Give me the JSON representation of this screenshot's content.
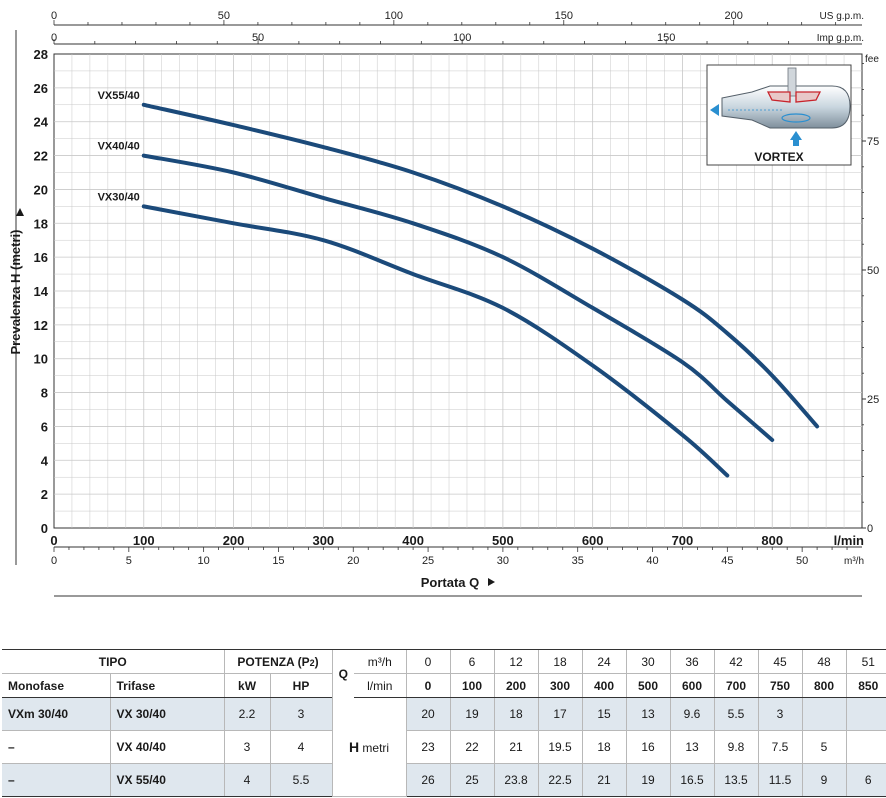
{
  "chart_data": {
    "type": "line",
    "ylabel": "Prevalenza H (metri)",
    "xlabel": "Portata Q",
    "xunit": "l/min",
    "xlim": [
      0,
      900
    ],
    "ylim": [
      0,
      28
    ],
    "grid": true,
    "x_ticks": [
      "0",
      "100",
      "200",
      "300",
      "400",
      "500",
      "600",
      "700",
      "800"
    ],
    "y_ticks": [
      "0",
      "2",
      "4",
      "6",
      "8",
      "10",
      "12",
      "14",
      "16",
      "18",
      "20",
      "22",
      "24",
      "26",
      "28"
    ],
    "m3h_unit": "m³/h",
    "m3h_ticks": [
      "0",
      "5",
      "10",
      "15",
      "20",
      "25",
      "30",
      "35",
      "40",
      "45",
      "50"
    ],
    "us_gpm_unit": "US g.p.m.",
    "us_gpm_ticks": [
      "0",
      "50",
      "100",
      "150",
      "200"
    ],
    "imp_gpm_unit": "Imp g.p.m.",
    "imp_gpm_ticks": [
      "0",
      "50",
      "100",
      "150"
    ],
    "feet_unit": "fee",
    "feet_ticks": [
      "0",
      "25",
      "50",
      "75"
    ],
    "series": [
      {
        "name": "VX55/40",
        "x": [
          100,
          200,
          300,
          400,
          500,
          600,
          700,
          750,
          800,
          850
        ],
        "y": [
          25,
          23.8,
          22.5,
          21,
          19,
          16.5,
          13.5,
          11.5,
          9,
          6
        ]
      },
      {
        "name": "VX40/40",
        "x": [
          100,
          200,
          300,
          400,
          500,
          600,
          700,
          750,
          800
        ],
        "y": [
          22,
          21,
          19.5,
          18,
          16,
          13,
          9.8,
          7.5,
          5.2
        ]
      },
      {
        "name": "VX30/40",
        "x": [
          100,
          200,
          300,
          400,
          500,
          600,
          700,
          750
        ],
        "y": [
          19,
          18,
          17,
          15,
          13,
          9.6,
          5.5,
          3.1
        ]
      }
    ],
    "inset_label": "VORTEX",
    "colors": {
      "curve": "#1b4a7a",
      "grid": "#c8c8c8",
      "accent": "#2a8fd0"
    }
  },
  "table": {
    "tipo": "TIPO",
    "potenza": "POTENZA (P",
    "potenza_sub": "2",
    "q_label": "Q",
    "m3h": "m³/h",
    "lmin": "l/min",
    "monofase": "Monofase",
    "trifase": "Trifase",
    "kw": "kW",
    "hp": "HP",
    "h_label": "H",
    "h_unit": "metri",
    "q_m3h": [
      "0",
      "6",
      "12",
      "18",
      "24",
      "30",
      "36",
      "42",
      "45",
      "48",
      "51"
    ],
    "q_lmin": [
      "0",
      "100",
      "200",
      "300",
      "400",
      "500",
      "600",
      "700",
      "750",
      "800",
      "850"
    ],
    "rows": [
      {
        "mono": "VXm 30/40",
        "tri": "VX 30/40",
        "kw": "2.2",
        "hp": "3",
        "h": [
          "20",
          "19",
          "18",
          "17",
          "15",
          "13",
          "9.6",
          "5.5",
          "3",
          "",
          ""
        ]
      },
      {
        "mono": "–",
        "tri": "VX 40/40",
        "kw": "3",
        "hp": "4",
        "h": [
          "23",
          "22",
          "21",
          "19.5",
          "18",
          "16",
          "13",
          "9.8",
          "7.5",
          "5",
          ""
        ]
      },
      {
        "mono": "–",
        "tri": "VX 55/40",
        "kw": "4",
        "hp": "5.5",
        "h": [
          "26",
          "25",
          "23.8",
          "22.5",
          "21",
          "19",
          "16.5",
          "13.5",
          "11.5",
          "9",
          "6"
        ]
      }
    ]
  }
}
